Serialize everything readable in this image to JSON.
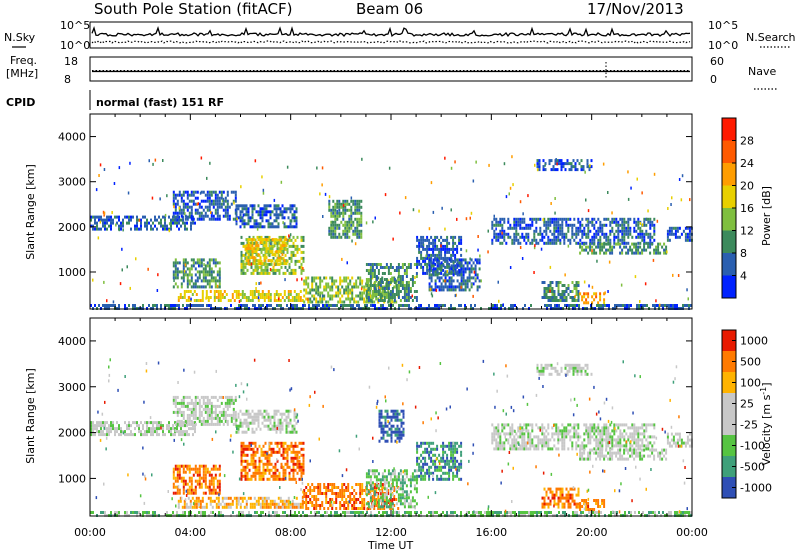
{
  "header": {
    "station": "South Pole Station (fitACF)",
    "beam": "Beam 06",
    "date": "17/Nov/2013",
    "cpid_label": "CPID",
    "cpid_value": "normal (fast) 151 RF"
  },
  "chart_data": [
    {
      "type": "line",
      "name": "noise-panel",
      "left_label": "N.Sky",
      "right_label": "N.Search",
      "left_ticks": [
        "10^5",
        "10^0"
      ],
      "right_ticks": [
        "10^5",
        "10^0"
      ],
      "series": [
        {
          "name": "N.Sky",
          "style": "solid"
        },
        {
          "name": "N.Search",
          "style": "dotted"
        }
      ]
    },
    {
      "type": "line",
      "name": "freq-panel",
      "left_label_1": "Freq.",
      "left_label_2": "[MHz]",
      "right_label": "Nave",
      "left_ticks": [
        "18",
        "8"
      ],
      "right_ticks": [
        "60",
        "0"
      ],
      "ylim_left": [
        8,
        18
      ],
      "ylim_right": [
        0,
        60
      ],
      "series": [
        {
          "name": "Freq.",
          "style": "solid",
          "value": 12
        },
        {
          "name": "Nave",
          "style": "dotted",
          "value": 20
        }
      ]
    },
    {
      "type": "heatmap",
      "name": "power",
      "ylabel": "Slant Range [km]",
      "yticks": [
        1000,
        2000,
        3000,
        4000
      ],
      "ylim": [
        180,
        4500
      ],
      "colorbar_label": "Power [dB]",
      "colorbar_ticks": [
        "28",
        "24",
        "20",
        "16",
        "12",
        "8",
        "4"
      ],
      "colors": [
        "#0022ff",
        "#2a5fb0",
        "#3c8a5c",
        "#7fbf3f",
        "#e8d000",
        "#ff9d00",
        "#ff5a00",
        "#ff1a00"
      ],
      "regions": [
        {
          "t0": 0.0,
          "t1": 4.2,
          "r0": 1950,
          "r1": 2250,
          "level": 1
        },
        {
          "t0": 3.3,
          "t1": 5.8,
          "r0": 2150,
          "r1": 2800,
          "level": 1
        },
        {
          "t0": 5.8,
          "t1": 8.2,
          "r0": 2000,
          "r1": 2500,
          "level": 1
        },
        {
          "t0": 6.0,
          "t1": 8.5,
          "r0": 950,
          "r1": 1800,
          "level": 3
        },
        {
          "t0": 6.2,
          "t1": 7.8,
          "r0": 1200,
          "r1": 1750,
          "level": 4
        },
        {
          "t0": 3.3,
          "t1": 5.2,
          "r0": 650,
          "r1": 1300,
          "level": 2
        },
        {
          "t0": 3.5,
          "t1": 8.5,
          "r0": 380,
          "r1": 600,
          "level": 4
        },
        {
          "t0": 8.5,
          "t1": 12.3,
          "r0": 350,
          "r1": 900,
          "level": 3
        },
        {
          "t0": 9.5,
          "t1": 10.8,
          "r0": 1800,
          "r1": 2600,
          "level": 2
        },
        {
          "t0": 11.0,
          "t1": 13.0,
          "r0": 350,
          "r1": 1200,
          "level": 2
        },
        {
          "t0": 13.0,
          "t1": 14.8,
          "r0": 1000,
          "r1": 1800,
          "level": 1
        },
        {
          "t0": 13.5,
          "t1": 15.5,
          "r0": 600,
          "r1": 1300,
          "level": 1
        },
        {
          "t0": 16.0,
          "t1": 22.5,
          "r0": 1650,
          "r1": 2200,
          "level": 1
        },
        {
          "t0": 19.5,
          "t1": 23.0,
          "r0": 1400,
          "r1": 1650,
          "level": 2
        },
        {
          "t0": 23.0,
          "t1": 24.0,
          "r0": 1700,
          "r1": 2000,
          "level": 1
        },
        {
          "t0": 17.8,
          "t1": 20.0,
          "r0": 3250,
          "r1": 3500,
          "level": 1
        },
        {
          "t0": 18.0,
          "t1": 19.5,
          "r0": 350,
          "r1": 800,
          "level": 2
        },
        {
          "t0": 19.5,
          "t1": 20.5,
          "r0": 350,
          "r1": 550,
          "level": 5
        },
        {
          "t0": 0.0,
          "t1": 24.0,
          "r0": 180,
          "r1": 290,
          "level": 1
        }
      ]
    },
    {
      "type": "heatmap",
      "name": "velocity",
      "ylabel": "Slant Range [km]",
      "yticks": [
        1000,
        2000,
        3000,
        4000
      ],
      "ylim": [
        180,
        4500
      ],
      "colorbar_label": "Velocity",
      "colorbar_unit": "[m s",
      "colorbar_unit_sup": "-1",
      "colorbar_unit_end": "]",
      "colorbar_ticks": [
        "1000",
        "500",
        "100",
        "25",
        "-25",
        "-100",
        "-500",
        "-1000"
      ],
      "colors": [
        "#2f4fb5",
        "#3fa07a",
        "#56c442",
        "#c8c8c8",
        "#c8c8c8",
        "#ffb300",
        "#ff7a00",
        "#e81a00"
      ],
      "regions": [
        {
          "t0": 0.0,
          "t1": 4.2,
          "r0": 1950,
          "r1": 2250,
          "level": 3
        },
        {
          "t0": 3.3,
          "t1": 5.8,
          "r0": 2150,
          "r1": 2800,
          "level": 3
        },
        {
          "t0": 5.8,
          "t1": 8.2,
          "r0": 2000,
          "r1": 2500,
          "level": 3
        },
        {
          "t0": 6.0,
          "t1": 8.5,
          "r0": 950,
          "r1": 1800,
          "level": 6
        },
        {
          "t0": 3.3,
          "t1": 5.2,
          "r0": 650,
          "r1": 1300,
          "level": 6
        },
        {
          "t0": 3.5,
          "t1": 8.5,
          "r0": 380,
          "r1": 600,
          "level": 5
        },
        {
          "t0": 8.5,
          "t1": 12.3,
          "r0": 350,
          "r1": 900,
          "level": 6
        },
        {
          "t0": 11.0,
          "t1": 13.0,
          "r0": 350,
          "r1": 1200,
          "level": 2
        },
        {
          "t0": 11.5,
          "t1": 12.5,
          "r0": 1800,
          "r1": 2500,
          "level": 0
        },
        {
          "t0": 13.0,
          "t1": 14.8,
          "r0": 1000,
          "r1": 1800,
          "level": 1
        },
        {
          "t0": 16.0,
          "t1": 22.5,
          "r0": 1650,
          "r1": 2200,
          "level": 3
        },
        {
          "t0": 19.5,
          "t1": 23.0,
          "r0": 1400,
          "r1": 1650,
          "level": 3
        },
        {
          "t0": 23.0,
          "t1": 24.0,
          "r0": 1700,
          "r1": 2000,
          "level": 3
        },
        {
          "t0": 17.8,
          "t1": 20.0,
          "r0": 3250,
          "r1": 3500,
          "level": 3
        },
        {
          "t0": 18.0,
          "t1": 19.5,
          "r0": 350,
          "r1": 800,
          "level": 6
        },
        {
          "t0": 19.5,
          "t1": 20.5,
          "r0": 350,
          "r1": 550,
          "level": 6
        },
        {
          "t0": 0.0,
          "t1": 24.0,
          "r0": 180,
          "r1": 290,
          "level": 2
        }
      ]
    }
  ],
  "x_axis": {
    "label": "Time UT",
    "xlim": [
      0,
      24
    ],
    "ticks": [
      {
        "t": 0,
        "label": "00:00"
      },
      {
        "t": 4,
        "label": "04:00"
      },
      {
        "t": 8,
        "label": "08:00"
      },
      {
        "t": 12,
        "label": "12:00"
      },
      {
        "t": 16,
        "label": "16:00"
      },
      {
        "t": 20,
        "label": "20:00"
      },
      {
        "t": 24,
        "label": "00:00"
      }
    ]
  }
}
